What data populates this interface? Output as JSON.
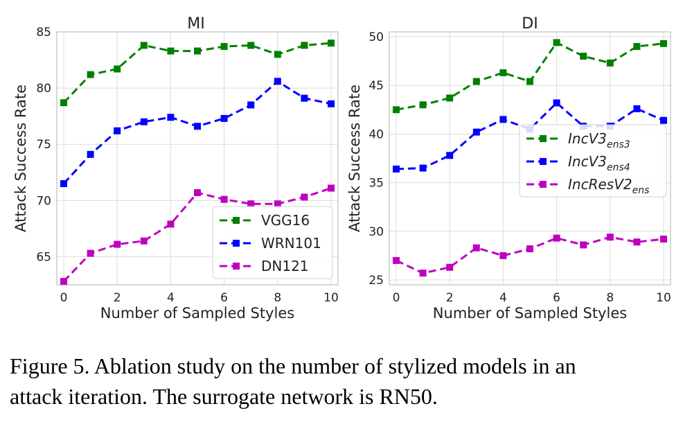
{
  "figure": {
    "caption_line1": "Figure 5.  Ablation study on the number of stylized models in an",
    "caption_line2": "attack iteration. The surrogate network is RN50."
  },
  "chart_data": [
    {
      "type": "line",
      "title": "MI",
      "xlabel": "Number of Sampled Styles",
      "ylabel": "Attack Success Rate",
      "x": [
        0,
        1,
        2,
        3,
        4,
        5,
        6,
        7,
        8,
        9,
        10
      ],
      "xlim": [
        0,
        10
      ],
      "ylim": [
        62.5,
        85
      ],
      "xticks": [
        "0",
        "2",
        "4",
        "6",
        "8",
        "10"
      ],
      "yticks": [
        "65",
        "70",
        "75",
        "80",
        "85"
      ],
      "grid": true,
      "legend_position": "lower-right",
      "series": [
        {
          "name": "VGG16",
          "color": "#008000",
          "values": [
            78.7,
            81.2,
            81.7,
            83.8,
            83.3,
            83.3,
            83.7,
            83.8,
            83.0,
            83.8,
            84.0
          ]
        },
        {
          "name": "WRN101",
          "color": "#0000ff",
          "values": [
            71.5,
            74.1,
            76.2,
            77.0,
            77.4,
            76.6,
            77.3,
            78.5,
            80.6,
            79.1,
            78.6
          ]
        },
        {
          "name": "DN121",
          "color": "#bf00bf",
          "values": [
            62.8,
            65.3,
            66.1,
            66.4,
            67.9,
            70.7,
            70.1,
            69.7,
            69.7,
            70.3,
            71.1
          ]
        }
      ]
    },
    {
      "type": "line",
      "title": "DI",
      "xlabel": "Number of Sampled Styles",
      "ylabel": "Attack Success Rate",
      "x": [
        0,
        1,
        2,
        3,
        4,
        5,
        6,
        7,
        8,
        9,
        10
      ],
      "xlim": [
        0,
        10
      ],
      "ylim": [
        24.5,
        50.5
      ],
      "xticks": [
        "0",
        "2",
        "4",
        "6",
        "8",
        "10"
      ],
      "yticks": [
        "25",
        "30",
        "35",
        "40",
        "45",
        "50"
      ],
      "grid": true,
      "legend_position": "upper-right",
      "series": [
        {
          "name": "IncV3",
          "subscript": "ens3",
          "color": "#008000",
          "values": [
            42.5,
            43.0,
            43.7,
            45.4,
            46.3,
            45.4,
            49.4,
            48.0,
            47.3,
            49.0,
            49.3
          ]
        },
        {
          "name": "IncV3",
          "subscript": "ens4",
          "color": "#0000ff",
          "values": [
            36.4,
            36.5,
            37.8,
            40.2,
            41.5,
            40.5,
            43.2,
            40.8,
            40.8,
            42.6,
            41.4
          ]
        },
        {
          "name": "IncResV2",
          "subscript": "ens",
          "color": "#bf00bf",
          "values": [
            27.0,
            25.7,
            26.3,
            28.3,
            27.5,
            28.2,
            29.3,
            28.6,
            29.4,
            28.9,
            29.2
          ]
        }
      ]
    }
  ]
}
